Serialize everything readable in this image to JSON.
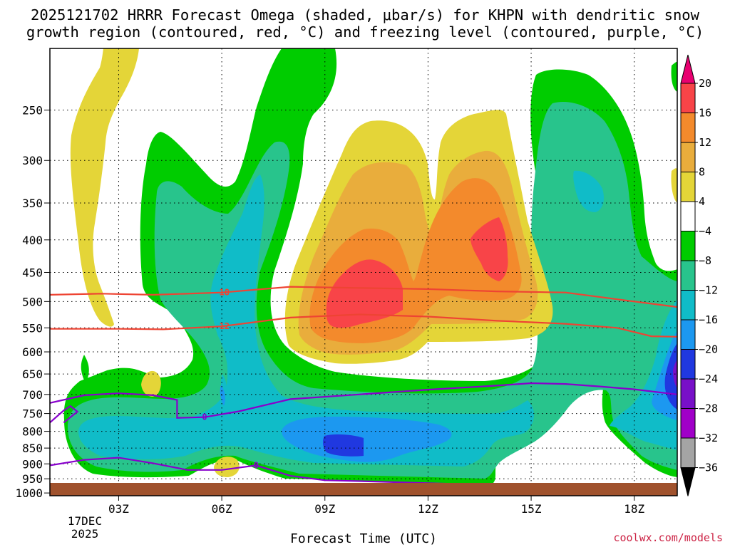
{
  "chart_data": {
    "type": "heatmap",
    "title_lines": [
      "2025121702 HRRR Forecast Omega (shaded, μbar/s) for KHPN with dendritic snow",
      "growth region (contoured, red, °C) and freezing level (contoured, purple, °C)"
    ],
    "xlabel": "Forecast Time (UTC)",
    "ylabel": "",
    "credit": "coolwx.com/models",
    "x_ticks": [
      {
        "hour": 3,
        "label": "03Z"
      },
      {
        "hour": 6,
        "label": "06Z"
      },
      {
        "hour": 9,
        "label": "09Z"
      },
      {
        "hour": 12,
        "label": "12Z"
      },
      {
        "hour": 15,
        "label": "15Z"
      },
      {
        "hour": 18,
        "label": "18Z"
      }
    ],
    "x_date_label": [
      "17DEC",
      "2025"
    ],
    "xlim_hours": [
      1.0,
      19.25
    ],
    "y_ticks": [
      250,
      300,
      350,
      400,
      450,
      500,
      550,
      600,
      650,
      700,
      750,
      800,
      850,
      900,
      950,
      1000
    ],
    "ylim_hPa": [
      200,
      1010
    ],
    "y_scale": "log",
    "grid": true,
    "colorbar": {
      "labels": [
        "20",
        "16",
        "12",
        "8",
        "4",
        "−4",
        "−8",
        "−12",
        "−16",
        "−20",
        "−24",
        "−28",
        "−32",
        "−36"
      ],
      "colors": [
        "#f84448",
        "#f38a2c",
        "#e9ad3c",
        "#e4d538",
        "#ffffff",
        "#00cc00",
        "#28c48c",
        "#10bcc8",
        "#1c98f0",
        "#2038e0",
        "#7810c8",
        "#a000c8",
        "#a4a4a4"
      ],
      "top_arrow_color": "#e80070",
      "bottom_arrow_color": "#000000"
    },
    "colors": {
      "omega_pos4": "#e4d538",
      "omega_pos8": "#e9ad3c",
      "omega_pos12": "#f38a2c",
      "omega_pos16": "#f84448",
      "omega_neg4": "#00cc00",
      "omega_neg8": "#28c48c",
      "omega_neg12": "#10bcc8",
      "omega_neg16": "#1c98f0",
      "omega_neg20": "#2038e0",
      "dgz_contour": "#ee4433",
      "freezing_contour": "#8800cc",
      "ground": "#a0522d"
    },
    "dgz_contours": [
      {
        "label": "-18",
        "points": [
          [
            1.0,
            488
          ],
          [
            2.5,
            486
          ],
          [
            4.0,
            488
          ],
          [
            6.0,
            484
          ],
          [
            8.0,
            474
          ],
          [
            10.0,
            476
          ],
          [
            12.0,
            478
          ],
          [
            14.0,
            482
          ],
          [
            16.0,
            484
          ],
          [
            18.0,
            500
          ],
          [
            19.25,
            510
          ]
        ]
      },
      {
        "label": "-12",
        "points": [
          [
            1.0,
            552
          ],
          [
            3.0,
            552
          ],
          [
            4.3,
            553
          ],
          [
            6.0,
            547
          ],
          [
            8.0,
            530
          ],
          [
            10.0,
            524
          ],
          [
            12.0,
            528
          ],
          [
            14.0,
            536
          ],
          [
            16.0,
            542
          ],
          [
            17.5,
            550
          ],
          [
            18.5,
            567
          ],
          [
            19.25,
            568
          ]
        ]
      }
    ],
    "freezing_contours": [
      {
        "label": "0",
        "points": [
          [
            1.0,
            722
          ],
          [
            2.0,
            702
          ],
          [
            3.0,
            697
          ],
          [
            4.0,
            702
          ],
          [
            4.7,
            714
          ],
          [
            4.7,
            762
          ],
          [
            5.5,
            760
          ],
          [
            6.5,
            744
          ],
          [
            8.0,
            712
          ],
          [
            10.0,
            700
          ],
          [
            12.0,
            688
          ],
          [
            14.0,
            678
          ],
          [
            15.0,
            672
          ],
          [
            16.0,
            674
          ],
          [
            17.0,
            680
          ],
          [
            18.0,
            687
          ],
          [
            19.25,
            700
          ]
        ]
      },
      {
        "label": "",
        "points": [
          [
            1.0,
            775
          ],
          [
            1.4,
            742
          ],
          [
            1.6,
            730
          ],
          [
            1.8,
            745
          ],
          [
            1.4,
            775
          ]
        ]
      },
      {
        "label": "0",
        "points": [
          [
            1.0,
            905
          ],
          [
            2.0,
            887
          ],
          [
            3.0,
            880
          ],
          [
            4.0,
            898
          ],
          [
            5.0,
            920
          ],
          [
            6.0,
            920
          ],
          [
            7.0,
            905
          ],
          [
            8.0,
            940
          ],
          [
            9.0,
            955
          ],
          [
            10.0,
            958
          ],
          [
            12.0,
            965
          ],
          [
            14.0,
            972
          ],
          [
            15.0,
            975
          ]
        ]
      }
    ]
  }
}
